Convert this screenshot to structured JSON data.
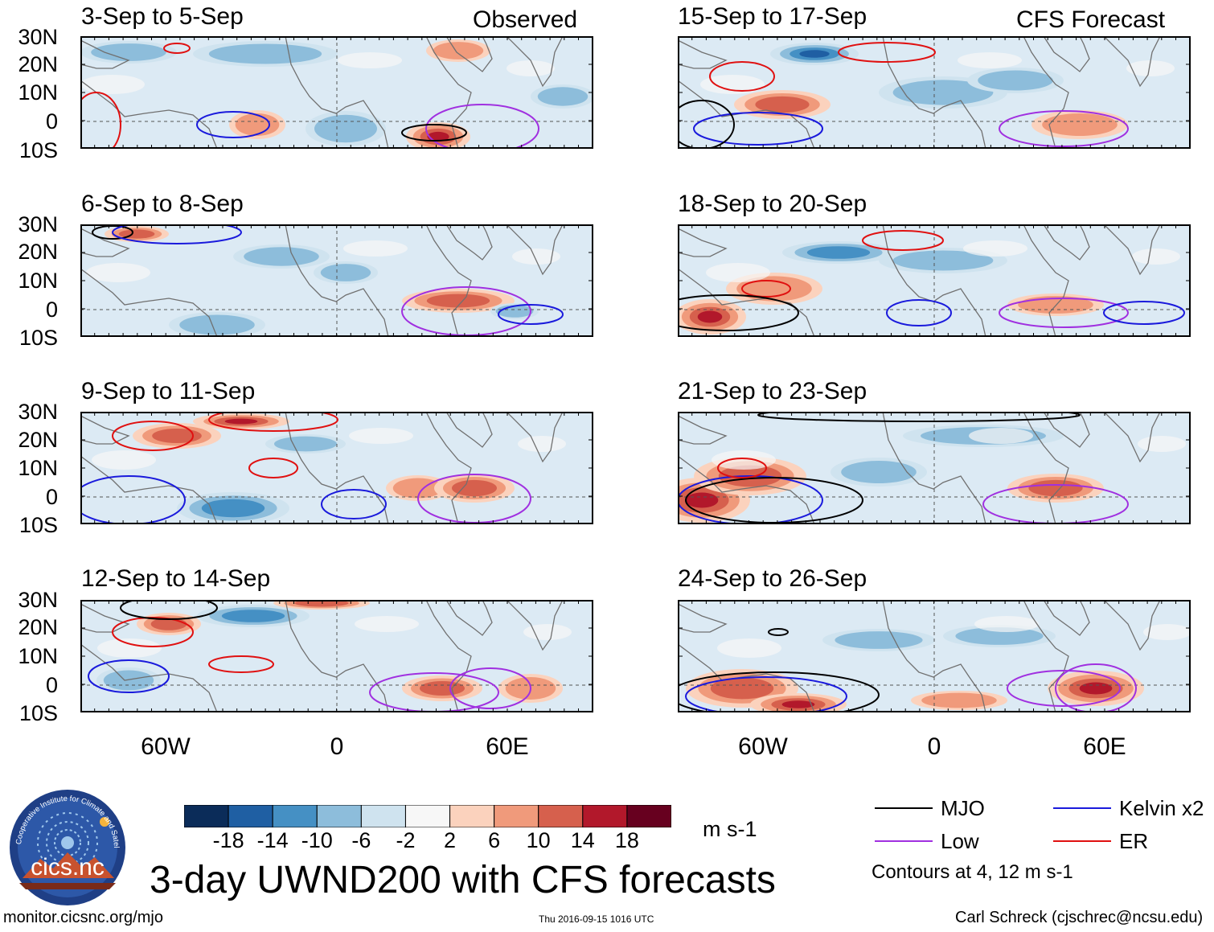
{
  "column_tags": {
    "observed": "Observed",
    "forecast": "CFS Forecast"
  },
  "panels": {
    "obs": [
      "3-Sep to 5-Sep",
      "6-Sep to 8-Sep",
      "9-Sep to 11-Sep",
      "12-Sep to 14-Sep"
    ],
    "fcst": [
      "15-Sep to 17-Sep",
      "18-Sep to 20-Sep",
      "21-Sep to 23-Sep",
      "24-Sep to 26-Sep"
    ]
  },
  "lat_labels": [
    "30N",
    "20N",
    "10N",
    "0",
    "10S"
  ],
  "lon_labels": [
    "60W",
    "0",
    "60E"
  ],
  "colorbar": {
    "colors": [
      "#0b2c59",
      "#1f5fa3",
      "#4590c4",
      "#8dbddb",
      "#cfe3ef",
      "#f7f7f7",
      "#fbd2bd",
      "#f09a7b",
      "#d6604d",
      "#b2182b",
      "#67001f"
    ],
    "labels": [
      "-18",
      "-14",
      "-10",
      "-6",
      "-2",
      "2",
      "6",
      "10",
      "14",
      "18"
    ],
    "units": "m s-1"
  },
  "title": "3-day UWND200 with CFS forecasts",
  "legend": {
    "items": [
      {
        "label": "MJO",
        "color": "#000000"
      },
      {
        "label": "Kelvin x2",
        "color": "#1a1adc"
      },
      {
        "label": "Low",
        "color": "#a030e0"
      },
      {
        "label": "ER",
        "color": "#e01010"
      }
    ],
    "note": "Contours at 4, 12 m s-1"
  },
  "logo_text": {
    "ring": "Cooperative Institute for Climate and Satellites",
    "name": "cics.nc"
  },
  "footer": {
    "url": "monitor.cicsnc.org/mjo",
    "timestamp": "Thu 2016-09-15 1016 UTC",
    "author": "Carl Schreck (cjschrec@ncsu.edu)"
  }
}
